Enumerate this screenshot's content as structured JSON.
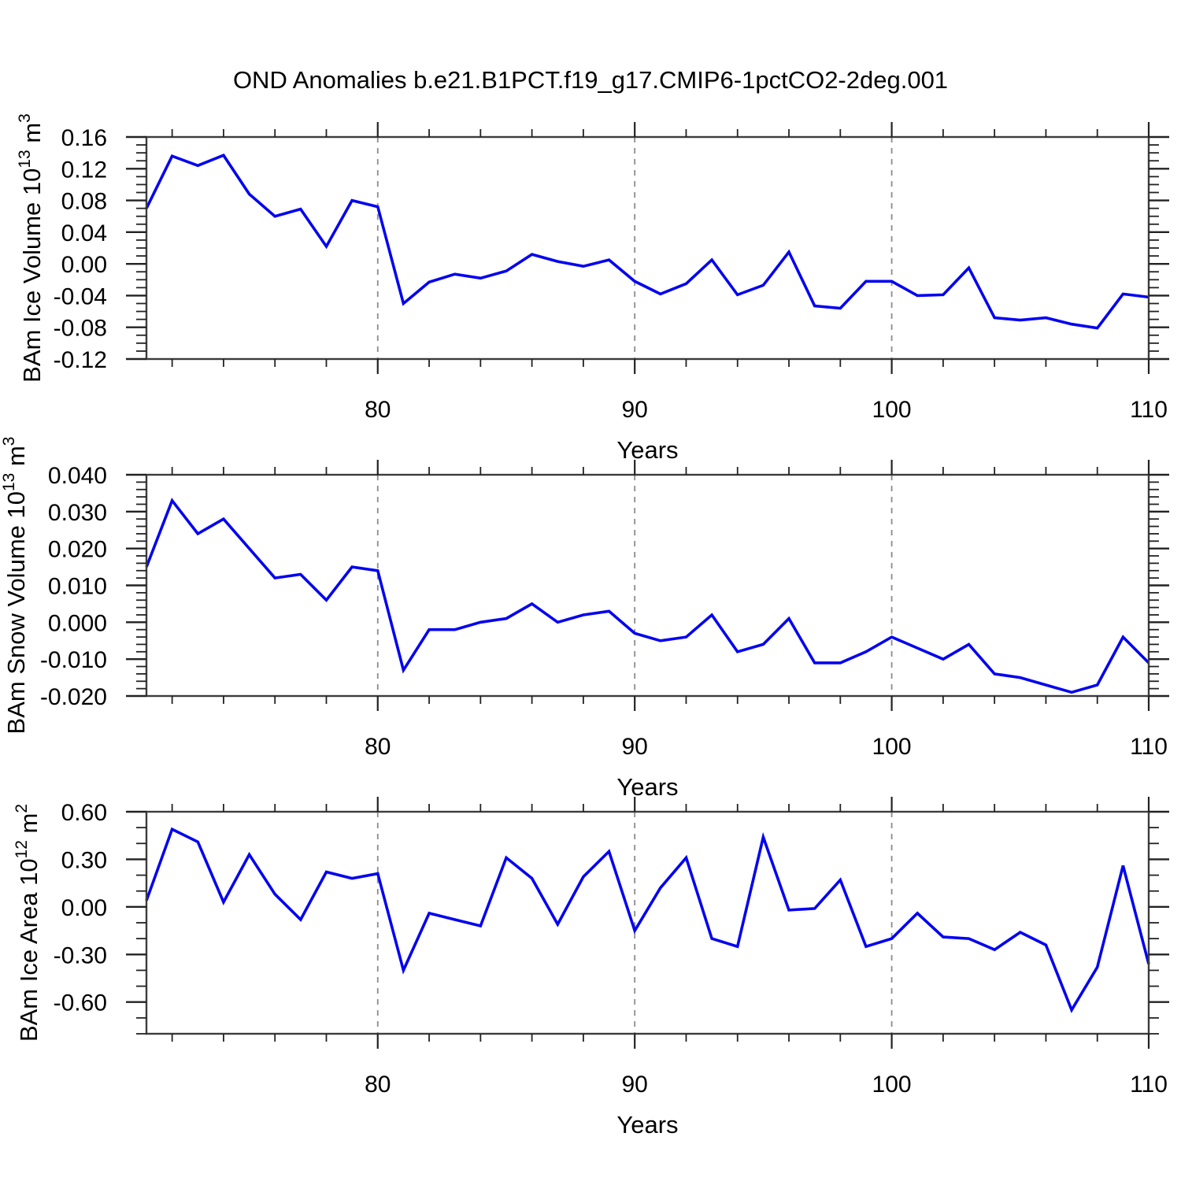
{
  "title": "OND Anomalies b.e21.B1PCT.f19_g17.CMIP6-1pctCO2-2deg.001",
  "x_axis_label": "Years",
  "colors": {
    "line": "#0404f0",
    "grid": "#8c8c8c",
    "box": "#3c3c3c",
    "tick": "#222222",
    "text": "#000000",
    "background": "#ffffff"
  },
  "years": [
    71,
    72,
    73,
    74,
    75,
    76,
    77,
    78,
    79,
    80,
    81,
    82,
    83,
    84,
    85,
    86,
    87,
    88,
    89,
    90,
    91,
    92,
    93,
    94,
    95,
    96,
    97,
    98,
    99,
    100,
    101,
    102,
    103,
    104,
    105,
    106,
    107,
    108,
    109,
    110
  ],
  "chart_data": [
    {
      "type": "line",
      "name": "bam-ice-volume",
      "title": "",
      "ylabel": "BAm Ice Volume 10^13 m^3",
      "ylabel_parts": {
        "prefix": "BAm Ice Volume 10",
        "exp1": "13",
        "mid": " m",
        "exp2": "3"
      },
      "xlabel": "Years",
      "xlim": [
        71,
        110
      ],
      "ylim": [
        -0.12,
        0.16
      ],
      "ytick_values": [
        0.16,
        0.12,
        0.08,
        0.04,
        0.0,
        -0.04,
        -0.08,
        -0.12
      ],
      "ytick_labels": [
        "0.16",
        "0.12",
        "0.08",
        "0.04",
        "0.00",
        "-0.04",
        "-0.08",
        "-0.12"
      ],
      "yminor_step": 0.01,
      "xtick_values": [
        80,
        90,
        100,
        110
      ],
      "xtick_labels": [
        "80",
        "90",
        "100",
        "110"
      ],
      "xminor_step": 2,
      "grid_x": [
        80,
        90,
        100
      ],
      "values": [
        0.07,
        0.136,
        0.124,
        0.137,
        0.088,
        0.06,
        0.069,
        0.022,
        0.08,
        0.072,
        -0.05,
        -0.023,
        -0.013,
        -0.018,
        -0.009,
        0.012,
        0.003,
        -0.003,
        0.005,
        -0.022,
        -0.038,
        -0.025,
        0.005,
        -0.039,
        -0.027,
        0.015,
        -0.053,
        -0.056,
        -0.022,
        -0.022,
        -0.04,
        -0.039,
        -0.005,
        -0.068,
        -0.071,
        -0.068,
        -0.076,
        -0.081,
        -0.038,
        -0.042
      ]
    },
    {
      "type": "line",
      "name": "bam-snow-volume",
      "title": "",
      "ylabel": "BAm Snow Volume 10^13 m^3",
      "ylabel_parts": {
        "prefix": "BAm Snow Volume 10",
        "exp1": "13",
        "mid": " m",
        "exp2": "3"
      },
      "xlabel": "Years",
      "xlim": [
        71,
        110
      ],
      "ylim": [
        -0.02,
        0.04
      ],
      "ytick_values": [
        0.04,
        0.03,
        0.02,
        0.01,
        0.0,
        -0.01,
        -0.02
      ],
      "ytick_labels": [
        "0.040",
        "0.030",
        "0.020",
        "0.010",
        "0.000",
        "-0.010",
        "-0.020"
      ],
      "yminor_step": 0.002,
      "xtick_values": [
        80,
        90,
        100,
        110
      ],
      "xtick_labels": [
        "80",
        "90",
        "100",
        "110"
      ],
      "xminor_step": 2,
      "grid_x": [
        80,
        90,
        100
      ],
      "values": [
        0.015,
        0.033,
        0.024,
        0.028,
        0.02,
        0.012,
        0.013,
        0.006,
        0.015,
        0.014,
        -0.013,
        -0.002,
        -0.002,
        0.0,
        0.001,
        0.005,
        0.0,
        0.002,
        0.003,
        -0.003,
        -0.005,
        -0.004,
        0.002,
        -0.008,
        -0.006,
        0.001,
        -0.011,
        -0.011,
        -0.008,
        -0.004,
        -0.007,
        -0.01,
        -0.006,
        -0.014,
        -0.015,
        -0.017,
        -0.019,
        -0.017,
        -0.004,
        -0.011
      ]
    },
    {
      "type": "line",
      "name": "bam-ice-area",
      "title": "",
      "ylabel": "BAm Ice Area 10^12 m^2",
      "ylabel_parts": {
        "prefix": "BAm Ice Area 10",
        "exp1": "12",
        "mid": " m",
        "exp2": "2"
      },
      "xlabel": "Years",
      "xlim": [
        71,
        110
      ],
      "ylim": [
        -0.8,
        0.6
      ],
      "ytick_values": [
        0.6,
        0.3,
        0.0,
        -0.3,
        -0.6
      ],
      "ytick_labels": [
        "0.60",
        "0.30",
        "0.00",
        "-0.30",
        "-0.60"
      ],
      "yminor_step": 0.1,
      "xtick_values": [
        80,
        90,
        100,
        110
      ],
      "xtick_labels": [
        "80",
        "90",
        "100",
        "110"
      ],
      "xminor_step": 2,
      "grid_x": [
        80,
        90,
        100
      ],
      "values": [
        0.04,
        0.49,
        0.41,
        0.03,
        0.33,
        0.08,
        -0.08,
        0.22,
        0.18,
        0.21,
        -0.4,
        -0.04,
        -0.08,
        -0.12,
        0.31,
        0.18,
        -0.11,
        0.19,
        0.35,
        -0.15,
        0.12,
        0.31,
        -0.2,
        -0.25,
        0.44,
        -0.02,
        -0.01,
        0.17,
        -0.25,
        -0.2,
        -0.04,
        -0.19,
        -0.2,
        -0.27,
        -0.16,
        -0.24,
        -0.65,
        -0.38,
        0.26,
        -0.36
      ]
    }
  ]
}
